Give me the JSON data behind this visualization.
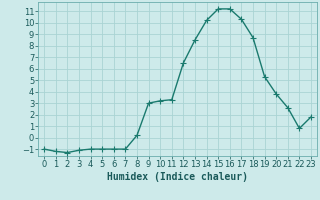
{
  "x": [
    0,
    1,
    2,
    3,
    4,
    5,
    6,
    7,
    8,
    9,
    10,
    11,
    12,
    13,
    14,
    15,
    16,
    17,
    18,
    19,
    20,
    21,
    22,
    23
  ],
  "y": [
    -1,
    -1.2,
    -1.3,
    -1.1,
    -1,
    -1,
    -1,
    -1,
    0.2,
    3.0,
    3.2,
    3.3,
    6.5,
    8.5,
    10.2,
    11.2,
    11.2,
    10.3,
    8.7,
    5.3,
    3.8,
    2.6,
    0.8,
    1.8
  ],
  "line_color": "#1a7a6e",
  "marker": "+",
  "markersize": 4,
  "linewidth": 1.0,
  "bg_color": "#cdeaea",
  "grid_color": "#aad4d4",
  "xlabel": "Humidex (Indice chaleur)",
  "xlabel_fontsize": 7,
  "tick_fontsize": 6,
  "ylim": [
    -1.6,
    11.8
  ],
  "xlim": [
    -0.5,
    23.5
  ],
  "yticks": [
    -1,
    0,
    1,
    2,
    3,
    4,
    5,
    6,
    7,
    8,
    9,
    10,
    11
  ],
  "xticks": [
    0,
    1,
    2,
    3,
    4,
    5,
    6,
    7,
    8,
    9,
    10,
    11,
    12,
    13,
    14,
    15,
    16,
    17,
    18,
    19,
    20,
    21,
    22,
    23
  ]
}
